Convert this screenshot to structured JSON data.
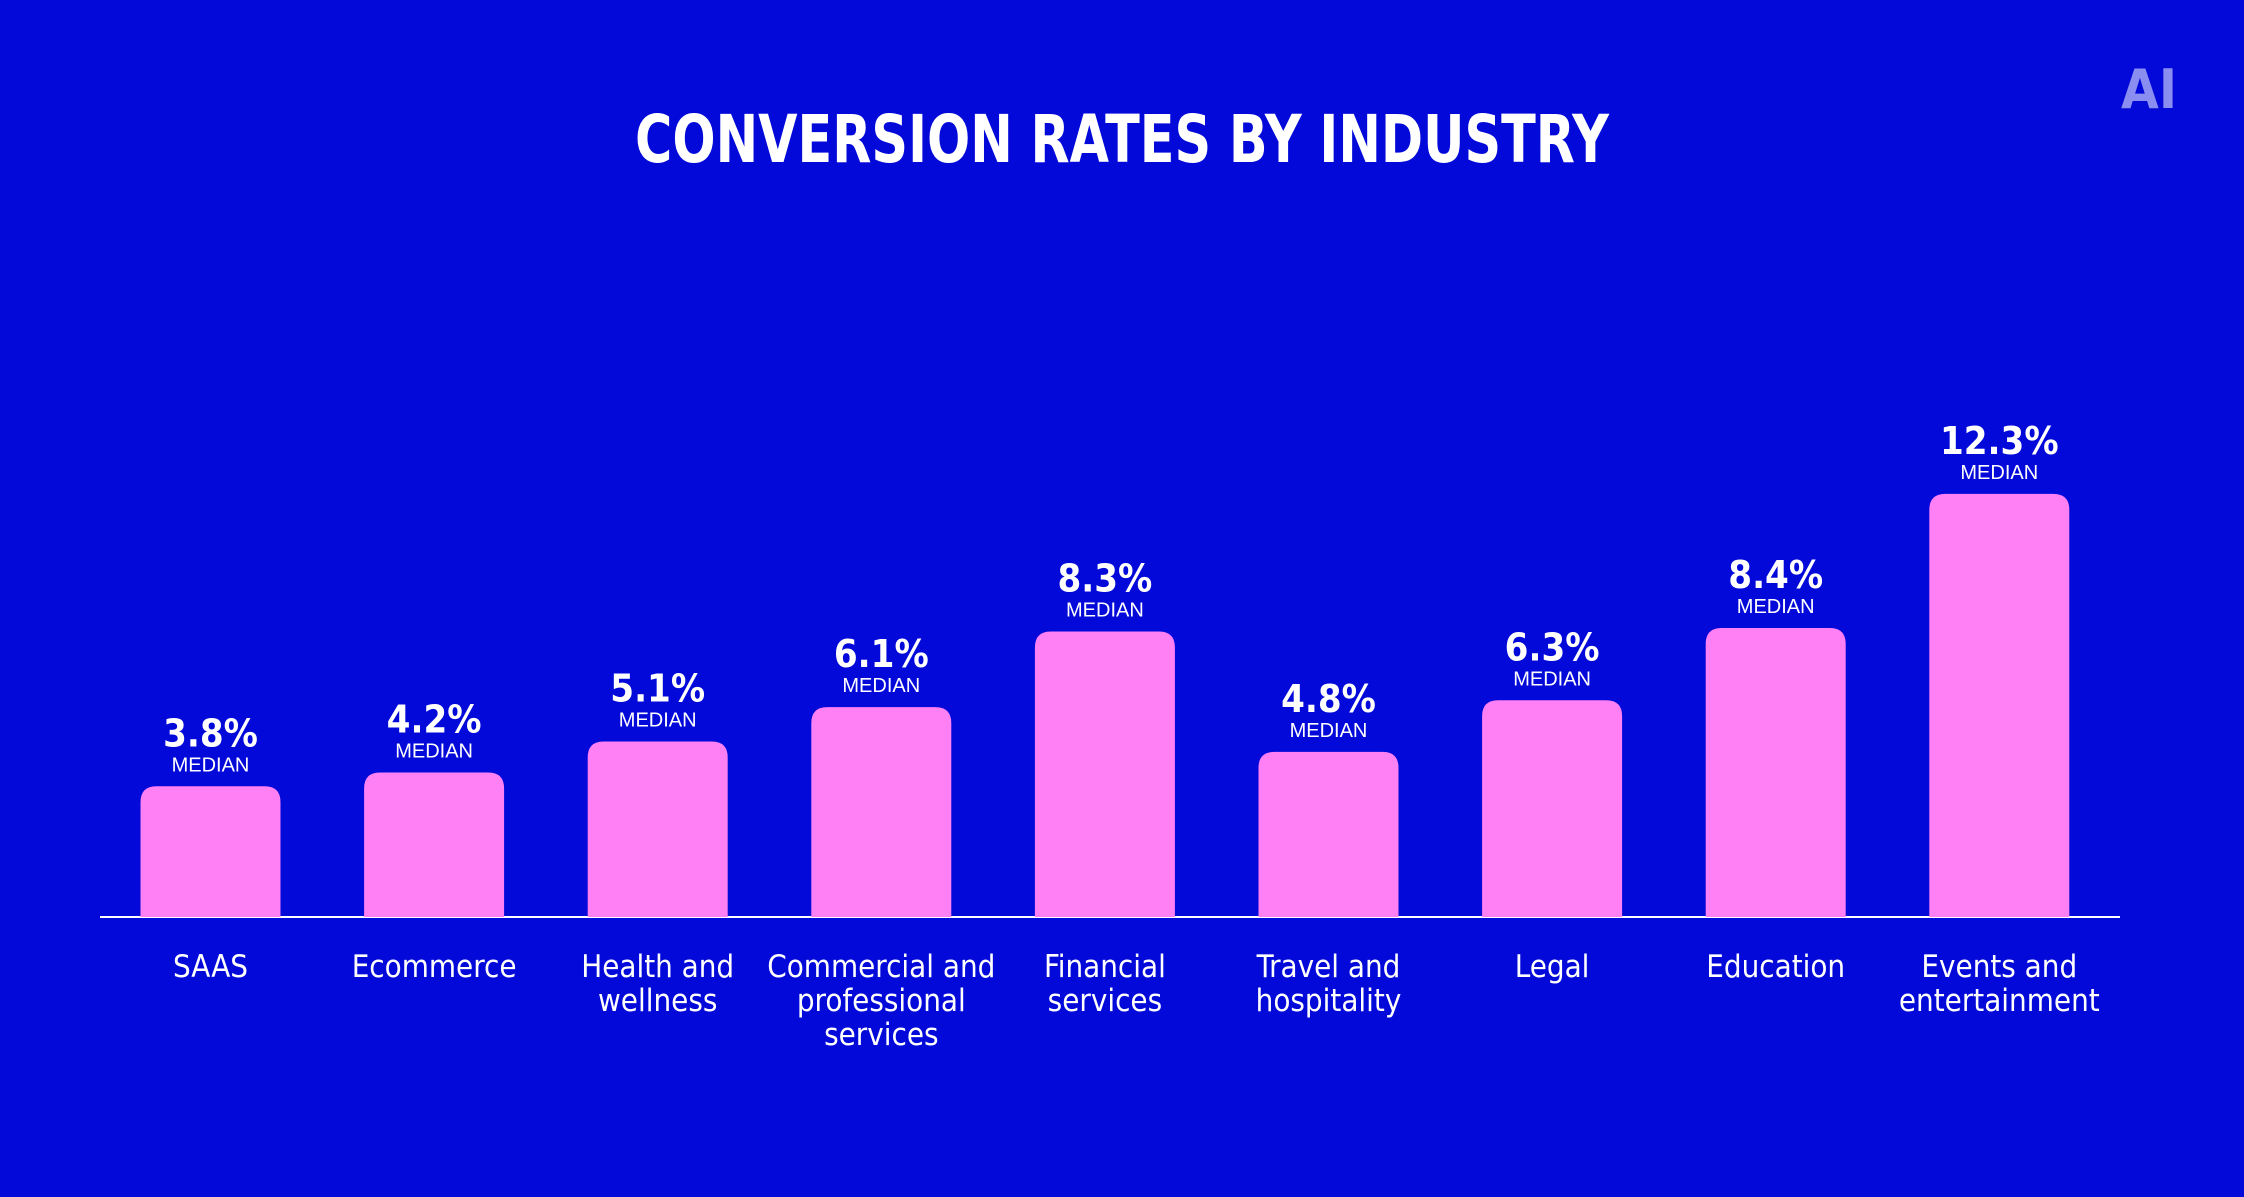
{
  "logo": {
    "text": "AI",
    "color": "#8A8EF0"
  },
  "colors": {
    "background": "#0209D8",
    "bar": "#FF80F4",
    "text": "#FFFFFF",
    "baseline": "#FFFFFF"
  },
  "chart_data": {
    "type": "bar",
    "title": "CONVERSION RATES BY INDUSTRY",
    "xlabel": "",
    "ylabel": "",
    "grid": false,
    "legend": "none",
    "ylim": [
      0,
      13
    ],
    "unit": "%",
    "value_sublabel": "MEDIAN",
    "categories": [
      [
        "SAAS"
      ],
      [
        "Ecommerce"
      ],
      [
        "Health and",
        "wellness"
      ],
      [
        "Commercial and",
        "professional",
        "services"
      ],
      [
        "Financial",
        "services"
      ],
      [
        "Travel and",
        "hospitality"
      ],
      [
        "Legal"
      ],
      [
        "Education"
      ],
      [
        "Events and",
        "entertainment"
      ]
    ],
    "values": [
      3.8,
      4.2,
      5.1,
      6.1,
      8.3,
      4.8,
      6.3,
      8.4,
      12.3
    ],
    "value_labels": [
      "3.8%",
      "4.2%",
      "5.1%",
      "6.1%",
      "8.3%",
      "4.8%",
      "6.3%",
      "8.4%",
      "12.3%"
    ]
  }
}
